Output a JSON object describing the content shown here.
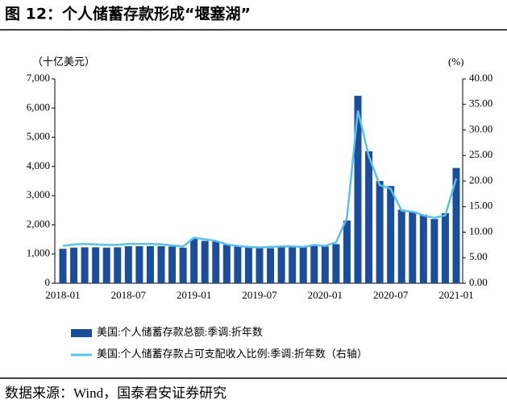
{
  "chart_data": {
    "type": "bar_line",
    "title": "图 12：个人储蓄存款形成“堰塞湖”",
    "source": "数据来源：Wind，国泰君安证券研究",
    "y_unit": "（十亿美元）",
    "y2_unit": "(%)",
    "categories": [
      "2018-01",
      null,
      null,
      null,
      null,
      null,
      "2018-07",
      null,
      null,
      null,
      null,
      null,
      "2019-01",
      null,
      null,
      null,
      null,
      null,
      "2019-07",
      null,
      null,
      null,
      null,
      null,
      "2020-01",
      null,
      null,
      null,
      null,
      null,
      "2020-07",
      null,
      null,
      null,
      null,
      null,
      "2021-01"
    ],
    "series": [
      {
        "name": "美国:个人储蓄存款总额:季调:折年数",
        "color": "#1a4e9a",
        "values": [
          1180,
          1220,
          1230,
          1230,
          1220,
          1230,
          1270,
          1270,
          1270,
          1270,
          1260,
          1220,
          1520,
          1450,
          1430,
          1330,
          1280,
          1260,
          1220,
          1200,
          1240,
          1240,
          1230,
          1280,
          1260,
          1340,
          2150,
          6420,
          4520,
          3500,
          3330,
          2520,
          2460,
          2350,
          2200,
          2400,
          3950
        ]
      },
      {
        "name": "美国:个人储蓄存款占可支配收入比例:季调:折年数（右轴）",
        "color": "#5bc0eb",
        "axis": "y2",
        "values": [
          7.3,
          7.6,
          7.7,
          7.6,
          7.5,
          7.5,
          7.7,
          7.7,
          7.7,
          7.6,
          7.4,
          7.2,
          8.9,
          8.6,
          8.3,
          7.6,
          7.3,
          7.1,
          7.0,
          7.1,
          7.2,
          7.2,
          7.1,
          7.5,
          7.3,
          8.0,
          12.8,
          33.8,
          24.9,
          19.2,
          18.5,
          14.2,
          14.0,
          13.3,
          12.8,
          13.3,
          20.5
        ]
      }
    ],
    "ylim": [
      0,
      7000
    ],
    "yticks": [
      0,
      {
        "value": 1000,
        "label": "1,000"
      },
      {
        "value": 2000,
        "label": "2,000"
      },
      {
        "value": 3000,
        "label": "3,000"
      },
      {
        "value": 4000,
        "label": "4,000"
      },
      {
        "value": 5000,
        "label": "5,000"
      },
      {
        "value": 6000,
        "label": "6,000"
      },
      {
        "value": 7000,
        "label": "7,000"
      }
    ],
    "y2lim": [
      0,
      40
    ],
    "y2ticks": [
      {
        "value": 0,
        "label": "0.00"
      },
      {
        "value": 5,
        "label": "5.00"
      },
      {
        "value": 10,
        "label": "10.00"
      },
      {
        "value": 15,
        "label": "15.00"
      },
      {
        "value": 20,
        "label": "20.00"
      },
      {
        "value": 25,
        "label": "25.00"
      },
      {
        "value": 30,
        "label": "30.00"
      },
      {
        "value": 35,
        "label": "35.00"
      },
      {
        "value": 40,
        "label": "40.00"
      }
    ]
  }
}
